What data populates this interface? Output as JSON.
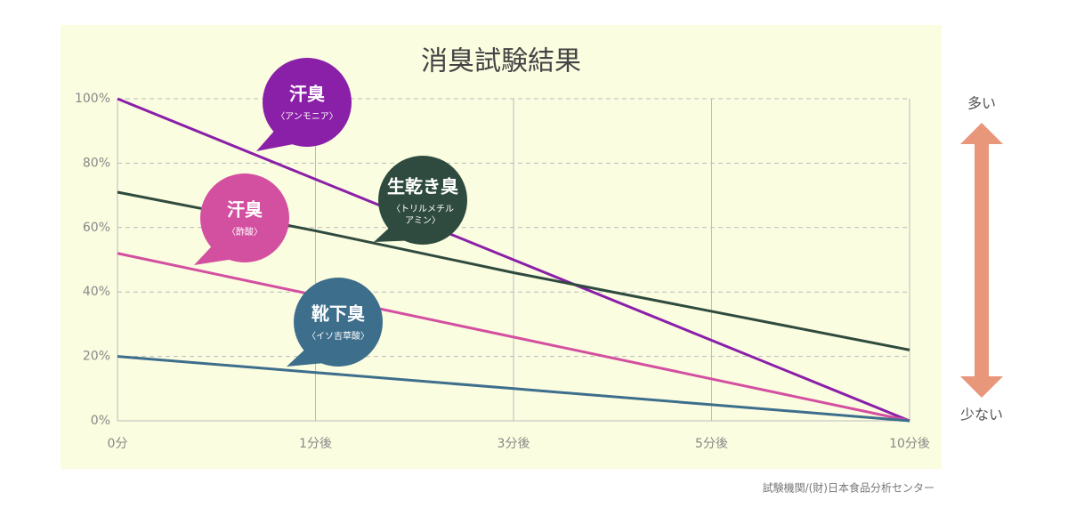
{
  "chart_data": {
    "type": "line",
    "title": "消臭試験結果",
    "categories": [
      "0分",
      "1分後",
      "3分後",
      "5分後",
      "10分後"
    ],
    "ylim": [
      0,
      100
    ],
    "yticks": [
      {
        "value": 0,
        "label": "0%"
      },
      {
        "value": 20,
        "label": "20%"
      },
      {
        "value": 40,
        "label": "40%"
      },
      {
        "value": 60,
        "label": "60%"
      },
      {
        "value": 80,
        "label": "80%"
      },
      {
        "value": 100,
        "label": "100%"
      }
    ],
    "grid": true,
    "series": [
      {
        "name": "汗臭",
        "sublabel": [
          "〈アンモニア〉"
        ],
        "color": "#8a1fa8",
        "values": [
          100,
          75,
          50,
          25,
          0
        ]
      },
      {
        "name": "生乾き臭",
        "sublabel": [
          "〈トリルメチル",
          "アミン〉"
        ],
        "color": "#2f4a3e",
        "values": [
          71,
          59,
          46,
          34,
          22
        ]
      },
      {
        "name": "汗臭",
        "sublabel": [
          "〈酢酸〉"
        ],
        "color": "#d34fa0",
        "values": [
          52,
          39,
          26,
          13,
          0
        ]
      },
      {
        "name": "靴下臭",
        "sublabel": [
          "〈イソ吉草酸〉"
        ],
        "color": "#3d6e8c",
        "values": [
          20,
          15,
          10,
          5,
          0
        ]
      }
    ],
    "arrow_top_label": "多い",
    "arrow_bottom_label": "少ない",
    "arrow_color": "#e8977a",
    "source": "試験機関/(財)日本食品分析センター"
  }
}
